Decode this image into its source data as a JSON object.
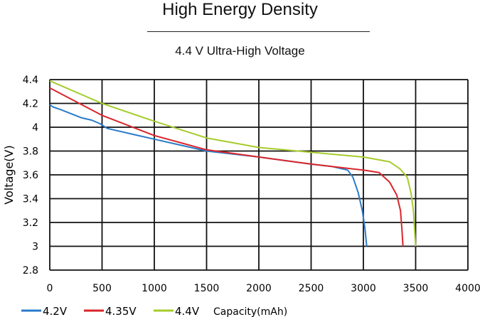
{
  "header": {
    "title": "High Energy Density",
    "subtitle": "4.4 V Ultra-High Voltage"
  },
  "chart_data": {
    "type": "line",
    "title": "High Energy Density",
    "subtitle": "4.4 V Ultra-High Voltage",
    "xlabel": "Capacity(mAh)",
    "ylabel": "Voltage(V)",
    "xlim": [
      0,
      4000
    ],
    "ylim": [
      2.8,
      4.4
    ],
    "xticks": [
      0,
      500,
      1000,
      1500,
      2000,
      2500,
      3000,
      3500,
      4000
    ],
    "yticks": [
      2.8,
      3,
      3.2,
      3.4,
      3.6,
      3.8,
      4,
      4.2,
      4.4
    ],
    "ytick_labels": [
      "2.8",
      "3",
      "3.2",
      "3.4",
      "3.6",
      "3.8",
      "4",
      "4.2",
      "4.4"
    ],
    "grid": true,
    "legend": "bottom-left",
    "series": [
      {
        "name": "4.2V",
        "color": "#2a7bc9",
        "points": [
          [
            0,
            4.19
          ],
          [
            30,
            4.17
          ],
          [
            100,
            4.15
          ],
          [
            300,
            4.08
          ],
          [
            400,
            4.06
          ],
          [
            480,
            4.03
          ],
          [
            550,
            3.99
          ],
          [
            800,
            3.94
          ],
          [
            1000,
            3.9
          ],
          [
            1500,
            3.8
          ],
          [
            2000,
            3.75
          ],
          [
            2500,
            3.69
          ],
          [
            2700,
            3.67
          ],
          [
            2850,
            3.64
          ],
          [
            2900,
            3.58
          ],
          [
            2950,
            3.45
          ],
          [
            2990,
            3.3
          ],
          [
            3015,
            3.15
          ],
          [
            3032,
            3.0
          ]
        ]
      },
      {
        "name": "4.35V",
        "color": "#d9262b",
        "points": [
          [
            0,
            4.33
          ],
          [
            500,
            4.1
          ],
          [
            1000,
            3.93
          ],
          [
            1500,
            3.81
          ],
          [
            2000,
            3.75
          ],
          [
            2500,
            3.69
          ],
          [
            3000,
            3.64
          ],
          [
            3150,
            3.62
          ],
          [
            3250,
            3.54
          ],
          [
            3320,
            3.43
          ],
          [
            3355,
            3.3
          ],
          [
            3368,
            3.15
          ],
          [
            3379,
            3.0
          ]
        ]
      },
      {
        "name": "4.4V",
        "color": "#a6cc2c",
        "points": [
          [
            0,
            4.39
          ],
          [
            500,
            4.2
          ],
          [
            1000,
            4.05
          ],
          [
            1500,
            3.91
          ],
          [
            2000,
            3.83
          ],
          [
            2500,
            3.79
          ],
          [
            3000,
            3.75
          ],
          [
            3250,
            3.71
          ],
          [
            3350,
            3.65
          ],
          [
            3420,
            3.58
          ],
          [
            3455,
            3.45
          ],
          [
            3478,
            3.3
          ],
          [
            3500,
            3.0
          ]
        ]
      }
    ]
  }
}
